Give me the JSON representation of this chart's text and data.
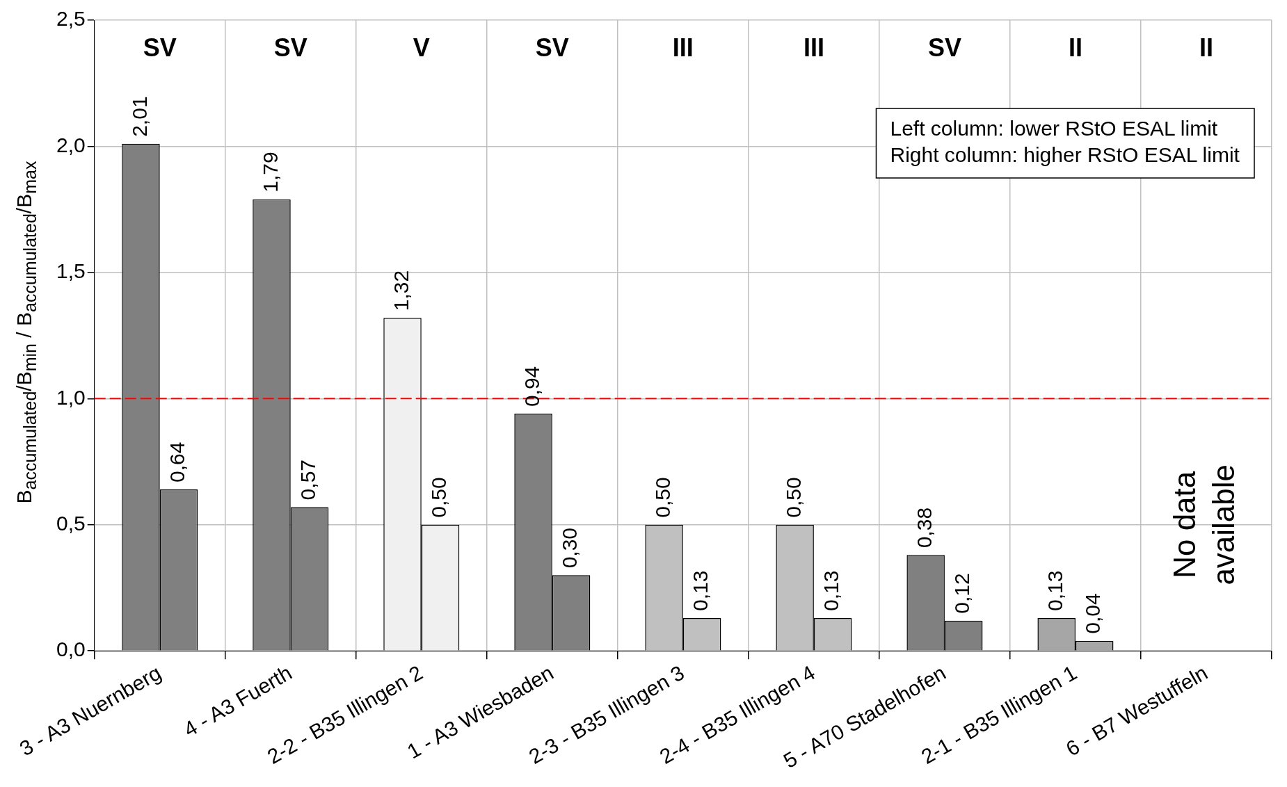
{
  "chart_data": {
    "type": "bar",
    "ylabel": "B$_{accumulated}$/B$_{min}$  /  B$_{accumulated}$/B$_{max}$",
    "categories": [
      "3 - A3 Nuernberg",
      "4 - A3 Fuerth",
      "2-2 - B35 Illingen 2",
      "1 - A3 Wiesbaden",
      "2-3 - B35 Illingen 3",
      "2-4 - B35 Illingen 4",
      "5 - A70 Stadelhofen",
      "2-1 - B35 Illingen 1",
      "6 - B7 Westuffeln"
    ],
    "series": [
      {
        "values": [
          2.01,
          1.79,
          1.32,
          0.94,
          0.5,
          0.5,
          0.38,
          0.13,
          null
        ],
        "value_labels": [
          "2,01",
          "1,79",
          "1,32",
          "0,94",
          "0,50",
          "0,50",
          "0,38",
          "0,13",
          null
        ],
        "colors": [
          "#808080",
          "#808080",
          "#f0f0f0",
          "#808080",
          "#c0c0c0",
          "#c0c0c0",
          "#808080",
          "#a6a6a6",
          "#a6a6a6"
        ]
      },
      {
        "values": [
          0.64,
          0.57,
          0.5,
          0.3,
          0.13,
          0.13,
          0.12,
          0.04,
          null
        ],
        "value_labels": [
          "0,64",
          "0,57",
          "0,50",
          "0,30",
          "0,13",
          "0,13",
          "0,12",
          "0,04",
          null
        ],
        "colors": [
          "#808080",
          "#808080",
          "#f0f0f0",
          "#808080",
          "#c0c0c0",
          "#c0c0c0",
          "#808080",
          "#a6a6a6",
          "#a6a6a6"
        ]
      }
    ],
    "ylim": [
      0,
      2.5
    ],
    "yticks": [
      {
        "value": 0,
        "label": "0,0"
      },
      {
        "value": 0.5,
        "label": "0,5"
      },
      {
        "value": 1,
        "label": "1,0"
      },
      {
        "value": 1.5,
        "label": "1,5"
      },
      {
        "value": 2,
        "label": "2,0"
      },
      {
        "value": 2.5,
        "label": "2,5"
      }
    ],
    "grid": true,
    "legend": false,
    "ref_lines": [
      {
        "axis": "y",
        "value": 1,
        "color": "#ff0000",
        "line_style": "dashed"
      }
    ],
    "annotations": [
      "SV",
      "SV",
      "V",
      "SV",
      "III",
      "III",
      "SV",
      "II",
      "II",
      "No data available",
      "Left column: lower RStO ESAL limit",
      "Right column: higher RStO ESAL limit"
    ]
  }
}
